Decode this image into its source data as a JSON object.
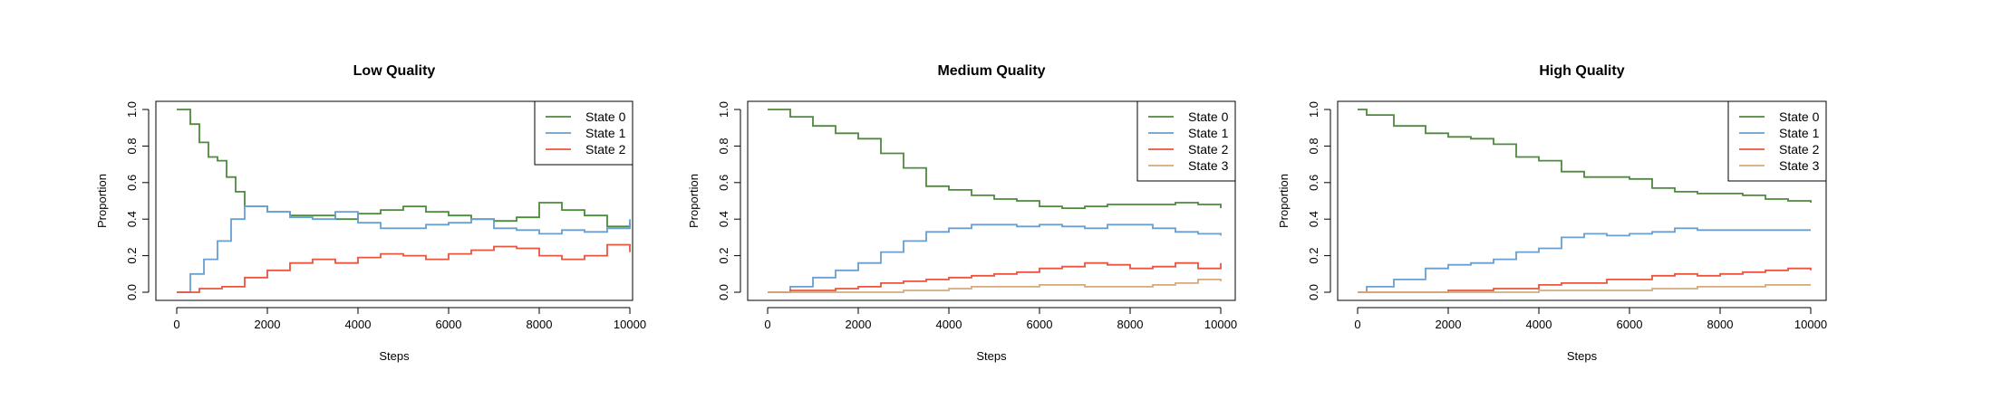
{
  "colors": {
    "State 0": "#4c8a3c",
    "State 1": "#6a9ecf",
    "State 2": "#e8553f",
    "State 3": "#d4aa7d",
    "axis": "#000000"
  },
  "chart_data": [
    {
      "type": "line",
      "title": "Low Quality",
      "xlabel": "Steps",
      "ylabel": "Proportion",
      "xlim": [
        0,
        10000
      ],
      "ylim": [
        0,
        1
      ],
      "xticks": [
        "0",
        "2000",
        "4000",
        "6000",
        "8000",
        "10000"
      ],
      "yticks": [
        "0.0",
        "0.2",
        "0.4",
        "0.6",
        "0.8",
        "1.0"
      ],
      "legend_position": "top-right",
      "series": [
        {
          "name": "State 0",
          "x": [
            0,
            300,
            500,
            700,
            900,
            1100,
            1300,
            1500,
            2000,
            2500,
            3000,
            3500,
            4000,
            4500,
            5000,
            5500,
            6000,
            6500,
            7000,
            7500,
            8000,
            8500,
            9000,
            9500,
            10000
          ],
          "y": [
            1.0,
            0.92,
            0.82,
            0.74,
            0.72,
            0.63,
            0.55,
            0.47,
            0.44,
            0.42,
            0.42,
            0.4,
            0.43,
            0.45,
            0.47,
            0.44,
            0.42,
            0.4,
            0.39,
            0.41,
            0.49,
            0.45,
            0.42,
            0.36,
            0.38
          ]
        },
        {
          "name": "State 1",
          "x": [
            0,
            300,
            600,
            900,
            1200,
            1500,
            2000,
            2500,
            3000,
            3500,
            4000,
            4500,
            5000,
            5500,
            6000,
            6500,
            7000,
            7500,
            8000,
            8500,
            9000,
            9500,
            10000
          ],
          "y": [
            0.0,
            0.1,
            0.18,
            0.28,
            0.4,
            0.47,
            0.44,
            0.41,
            0.4,
            0.44,
            0.38,
            0.35,
            0.35,
            0.37,
            0.38,
            0.4,
            0.35,
            0.34,
            0.32,
            0.34,
            0.33,
            0.35,
            0.4
          ]
        },
        {
          "name": "State 2",
          "x": [
            0,
            500,
            1000,
            1500,
            2000,
            2500,
            3000,
            3500,
            4000,
            4500,
            5000,
            5500,
            6000,
            6500,
            7000,
            7500,
            8000,
            8500,
            9000,
            9500,
            10000
          ],
          "y": [
            0.0,
            0.02,
            0.03,
            0.08,
            0.12,
            0.16,
            0.18,
            0.16,
            0.19,
            0.21,
            0.2,
            0.18,
            0.21,
            0.23,
            0.25,
            0.24,
            0.2,
            0.18,
            0.2,
            0.26,
            0.22
          ]
        }
      ]
    },
    {
      "type": "line",
      "title": "Medium Quality",
      "xlabel": "Steps",
      "ylabel": "Proportion",
      "xlim": [
        0,
        10000
      ],
      "ylim": [
        0,
        1
      ],
      "xticks": [
        "0",
        "2000",
        "4000",
        "6000",
        "8000",
        "10000"
      ],
      "yticks": [
        "0.0",
        "0.2",
        "0.4",
        "0.6",
        "0.8",
        "1.0"
      ],
      "legend_position": "top-right",
      "series": [
        {
          "name": "State 0",
          "x": [
            0,
            500,
            1000,
            1500,
            2000,
            2500,
            3000,
            3500,
            4000,
            4500,
            5000,
            5500,
            6000,
            6500,
            7000,
            7500,
            8000,
            8500,
            9000,
            9500,
            10000
          ],
          "y": [
            1.0,
            0.96,
            0.91,
            0.87,
            0.84,
            0.76,
            0.68,
            0.58,
            0.56,
            0.53,
            0.51,
            0.5,
            0.47,
            0.46,
            0.47,
            0.48,
            0.48,
            0.48,
            0.49,
            0.48,
            0.46
          ]
        },
        {
          "name": "State 1",
          "x": [
            0,
            500,
            1000,
            1500,
            2000,
            2500,
            3000,
            3500,
            4000,
            4500,
            5000,
            5500,
            6000,
            6500,
            7000,
            7500,
            8000,
            8500,
            9000,
            9500,
            10000
          ],
          "y": [
            0.0,
            0.03,
            0.08,
            0.12,
            0.16,
            0.22,
            0.28,
            0.33,
            0.35,
            0.37,
            0.37,
            0.36,
            0.37,
            0.36,
            0.35,
            0.37,
            0.37,
            0.35,
            0.33,
            0.32,
            0.31
          ]
        },
        {
          "name": "State 2",
          "x": [
            0,
            500,
            1000,
            1500,
            2000,
            2500,
            3000,
            3500,
            4000,
            4500,
            5000,
            5500,
            6000,
            6500,
            7000,
            7500,
            8000,
            8500,
            9000,
            9500,
            10000
          ],
          "y": [
            0.0,
            0.01,
            0.01,
            0.02,
            0.03,
            0.05,
            0.06,
            0.07,
            0.08,
            0.09,
            0.1,
            0.11,
            0.13,
            0.14,
            0.16,
            0.15,
            0.13,
            0.14,
            0.16,
            0.13,
            0.16
          ]
        },
        {
          "name": "State 3",
          "x": [
            0,
            1000,
            2000,
            3000,
            4000,
            4500,
            5000,
            6000,
            7000,
            8000,
            8500,
            9000,
            9500,
            10000
          ],
          "y": [
            0.0,
            0.0,
            0.0,
            0.01,
            0.02,
            0.03,
            0.03,
            0.04,
            0.03,
            0.03,
            0.04,
            0.05,
            0.07,
            0.06
          ]
        }
      ]
    },
    {
      "type": "line",
      "title": "High Quality",
      "xlabel": "Steps",
      "ylabel": "Proportion",
      "xlim": [
        0,
        10000
      ],
      "ylim": [
        0,
        1
      ],
      "xticks": [
        "0",
        "2000",
        "4000",
        "6000",
        "8000",
        "10000"
      ],
      "yticks": [
        "0.0",
        "0.2",
        "0.4",
        "0.6",
        "0.8",
        "1.0"
      ],
      "legend_position": "top-right",
      "series": [
        {
          "name": "State 0",
          "x": [
            0,
            200,
            800,
            1500,
            2000,
            2500,
            3000,
            3500,
            4000,
            4500,
            5000,
            5500,
            6000,
            6500,
            7000,
            7500,
            8000,
            8500,
            9000,
            9500,
            10000
          ],
          "y": [
            1.0,
            0.97,
            0.91,
            0.87,
            0.85,
            0.84,
            0.81,
            0.74,
            0.72,
            0.66,
            0.63,
            0.63,
            0.62,
            0.57,
            0.55,
            0.54,
            0.54,
            0.53,
            0.51,
            0.5,
            0.49
          ]
        },
        {
          "name": "State 1",
          "x": [
            0,
            200,
            800,
            1500,
            2000,
            2500,
            3000,
            3500,
            4000,
            4500,
            5000,
            5500,
            6000,
            6500,
            7000,
            7500,
            8000,
            8500,
            9000,
            9500,
            10000
          ],
          "y": [
            0.0,
            0.03,
            0.07,
            0.13,
            0.15,
            0.16,
            0.18,
            0.22,
            0.24,
            0.3,
            0.32,
            0.31,
            0.32,
            0.33,
            0.35,
            0.34,
            0.34,
            0.34,
            0.34,
            0.34,
            0.34
          ]
        },
        {
          "name": "State 2",
          "x": [
            0,
            1000,
            2000,
            3000,
            4000,
            4500,
            5000,
            5500,
            6000,
            6500,
            7000,
            7500,
            8000,
            8500,
            9000,
            9500,
            10000
          ],
          "y": [
            0.0,
            0.0,
            0.01,
            0.02,
            0.04,
            0.05,
            0.05,
            0.07,
            0.07,
            0.09,
            0.1,
            0.09,
            0.1,
            0.11,
            0.12,
            0.13,
            0.12
          ]
        },
        {
          "name": "State 3",
          "x": [
            0,
            2000,
            3000,
            4000,
            5000,
            6000,
            6500,
            7000,
            7500,
            8000,
            9000,
            10000
          ],
          "y": [
            0.0,
            0.0,
            0.0,
            0.01,
            0.01,
            0.01,
            0.02,
            0.02,
            0.03,
            0.03,
            0.04,
            0.04
          ]
        }
      ]
    }
  ]
}
